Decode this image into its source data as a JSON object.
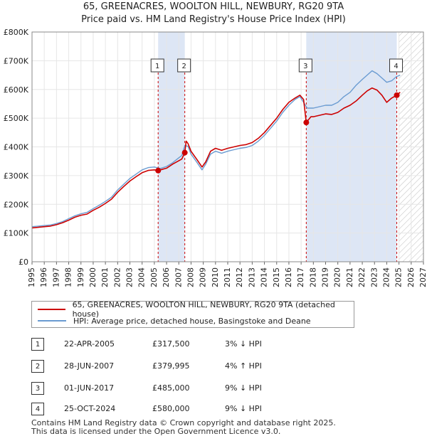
{
  "title_line1": "65, GREENACRES, WOOLTON HILL, NEWBURY, RG20 9TA",
  "title_line2": "Price paid vs. HM Land Registry's House Price Index (HPI)",
  "legend": {
    "property_label": "65, GREENACRES, WOOLTON HILL, NEWBURY, RG20 9TA (detached house)",
    "hpi_label": "HPI: Average price, detached house, Basingstoke and Deane"
  },
  "transactions": [
    {
      "id": "1",
      "date": "22-APR-2005",
      "price": "£317,500",
      "hpi": "3% ↓ HPI"
    },
    {
      "id": "2",
      "date": "28-JUN-2007",
      "price": "£379,995",
      "hpi": "4% ↑ HPI"
    },
    {
      "id": "3",
      "date": "01-JUN-2017",
      "price": "£485,000",
      "hpi": "9% ↓ HPI"
    },
    {
      "id": "4",
      "date": "25-OCT-2024",
      "price": "£580,000",
      "hpi": "9% ↓ HPI"
    }
  ],
  "footer_line1": "Contains HM Land Registry data © Crown copyright and database right 2025.",
  "footer_line2": "This data is licensed under the Open Government Licence v3.0.",
  "colors": {
    "property": "#cc0000",
    "hpi": "#6a9bd1",
    "shade": "#dde6f5",
    "marker_line": "#cc0000"
  },
  "chart_data": {
    "type": "line",
    "title": "65, GREENACRES, WOOLTON HILL, NEWBURY, RG20 9TA — Price paid vs. HM Land Registry's House Price Index (HPI)",
    "xlim": [
      1995,
      2027
    ],
    "ylim": [
      0,
      800000
    ],
    "x_ticks": [
      1995,
      1996,
      1997,
      1998,
      1999,
      2000,
      2001,
      2002,
      2003,
      2004,
      2005,
      2006,
      2007,
      2008,
      2009,
      2010,
      2011,
      2012,
      2013,
      2014,
      2015,
      2016,
      2017,
      2018,
      2019,
      2020,
      2021,
      2022,
      2023,
      2024,
      2025,
      2026,
      2027
    ],
    "y_ticks": [
      {
        "value": 0,
        "label": "£0"
      },
      {
        "value": 100000,
        "label": "£100K"
      },
      {
        "value": 200000,
        "label": "£200K"
      },
      {
        "value": 300000,
        "label": "£300K"
      },
      {
        "value": 400000,
        "label": "£400K"
      },
      {
        "value": 500000,
        "label": "£500K"
      },
      {
        "value": 600000,
        "label": "£600K"
      },
      {
        "value": 700000,
        "label": "£700K"
      },
      {
        "value": 800000,
        "label": "£800K"
      }
    ],
    "shaded_periods": [
      [
        2005.31,
        2007.49
      ],
      [
        2017.42,
        2024.82
      ]
    ],
    "hatched_from": 2025.0,
    "series": [
      {
        "name": "HPI: Average price, detached house, Basingstoke and Deane",
        "x": [
          1995,
          1995.5,
          1996,
          1996.5,
          1997,
          1997.5,
          1998,
          1998.5,
          1999,
          1999.5,
          2000,
          2000.5,
          2001,
          2001.5,
          2002,
          2002.5,
          2003,
          2003.5,
          2004,
          2004.5,
          2005,
          2005.5,
          2006,
          2006.5,
          2007,
          2007.25,
          2007.5,
          2007.75,
          2008,
          2008.5,
          2008.9,
          2009.2,
          2009.6,
          2010,
          2010.5,
          2011,
          2011.5,
          2012,
          2012.5,
          2013,
          2013.5,
          2014,
          2014.5,
          2015,
          2015.5,
          2016,
          2016.5,
          2016.9,
          2017.2,
          2017.5,
          2018,
          2018.5,
          2019,
          2019.5,
          2020,
          2020.5,
          2021,
          2021.5,
          2022,
          2022.4,
          2022.8,
          2023.2,
          2023.6,
          2024,
          2024.4,
          2024.8,
          2025.1
        ],
        "y": [
          122000,
          124000,
          126000,
          128000,
          133000,
          140000,
          150000,
          160000,
          167000,
          172000,
          185000,
          197000,
          210000,
          225000,
          250000,
          270000,
          290000,
          305000,
          320000,
          328000,
          330000,
          325000,
          332000,
          345000,
          362000,
          370000,
          405000,
          402000,
          375000,
          345000,
          320000,
          340000,
          375000,
          385000,
          378000,
          385000,
          390000,
          395000,
          398000,
          405000,
          420000,
          440000,
          465000,
          490000,
          520000,
          545000,
          565000,
          575000,
          555000,
          535000,
          535000,
          540000,
          545000,
          545000,
          555000,
          575000,
          590000,
          615000,
          635000,
          650000,
          665000,
          655000,
          640000,
          625000,
          630000,
          645000,
          650000
        ]
      },
      {
        "name": "65, GREENACRES, WOOLTON HILL, NEWBURY, RG20 9TA (detached house)",
        "x": [
          1995,
          1995.5,
          1996,
          1996.5,
          1997,
          1997.5,
          1998,
          1998.5,
          1999,
          1999.5,
          2000,
          2000.5,
          2001,
          2001.5,
          2002,
          2002.5,
          2003,
          2003.5,
          2004,
          2004.5,
          2005,
          2005.31,
          2005.5,
          2006,
          2006.5,
          2007,
          2007.25,
          2007.49,
          2007.6,
          2007.75,
          2008,
          2008.5,
          2008.9,
          2009.2,
          2009.6,
          2010,
          2010.5,
          2011,
          2011.5,
          2012,
          2012.5,
          2013,
          2013.5,
          2014,
          2014.5,
          2015,
          2015.5,
          2016,
          2016.5,
          2016.9,
          2017.2,
          2017.42,
          2017.8,
          2018,
          2018.5,
          2019,
          2019.5,
          2020,
          2020.5,
          2021,
          2021.5,
          2022,
          2022.4,
          2022.8,
          2023.2,
          2023.6,
          2024,
          2024.4,
          2024.82,
          2025.1
        ],
        "y": [
          118000,
          120000,
          122000,
          124000,
          129000,
          136000,
          145000,
          155000,
          162000,
          166000,
          179000,
          190000,
          203000,
          218000,
          242000,
          262000,
          281000,
          296000,
          310000,
          318000,
          320000,
          317500,
          320000,
          326000,
          340000,
          352000,
          358000,
          379995,
          420000,
          412000,
          385000,
          355000,
          330000,
          348000,
          385000,
          395000,
          388000,
          395000,
          400000,
          405000,
          408000,
          415000,
          430000,
          450000,
          475000,
          500000,
          530000,
          555000,
          570000,
          580000,
          565000,
          485000,
          505000,
          505000,
          510000,
          515000,
          513000,
          520000,
          535000,
          545000,
          560000,
          580000,
          595000,
          605000,
          598000,
          580000,
          555000,
          570000,
          580000,
          590000
        ]
      }
    ],
    "sales": [
      {
        "id": "1",
        "x": 2005.31,
        "y": 317500
      },
      {
        "id": "2",
        "x": 2007.49,
        "y": 379995
      },
      {
        "id": "3",
        "x": 2017.42,
        "y": 485000
      },
      {
        "id": "4",
        "x": 2024.82,
        "y": 580000
      }
    ]
  }
}
